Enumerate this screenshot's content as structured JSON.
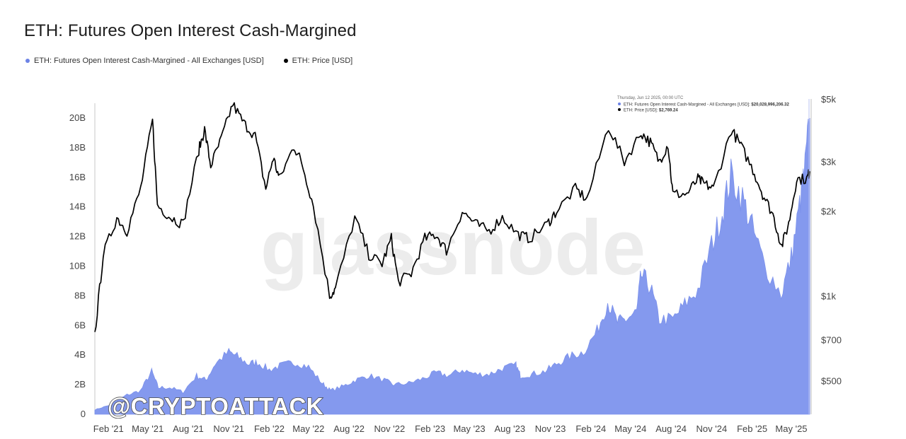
{
  "page_title": "ETH: Futures Open Interest Cash-Margined",
  "legend": [
    {
      "label": "ETH: Futures Open Interest Cash-Margined - All Exchanges [USD]",
      "color": "#6c83e6"
    },
    {
      "label": "ETH: Price [USD]",
      "color": "#000000"
    }
  ],
  "watermark": "glassnode",
  "handle": "@CRYPTOATTACK",
  "tooltip": {
    "date": "Thursday, Jun 12 2025, 00:00 UTC",
    "oi_label": "ETH: Futures Open Interest Cash-Margined - All Exchanges [USD]:",
    "oi_value": "$20,028,996,206.32",
    "price_label": "ETH: Price [USD]:",
    "price_value": "$2,769.24"
  },
  "colors": {
    "area": "#8499ee",
    "price": "#000000",
    "axis": "#444444"
  },
  "chart_data": {
    "type": "area",
    "title": "ETH: Futures Open Interest Cash-Margined",
    "x_ticks": [
      "Feb '21",
      "May '21",
      "Aug '21",
      "Nov '21",
      "Feb '22",
      "May '22",
      "Aug '22",
      "Nov '22",
      "Feb '23",
      "May '23",
      "Aug '23",
      "Nov '23",
      "Feb '24",
      "May '24",
      "Aug '24",
      "Nov '24",
      "Feb '25",
      "May '25"
    ],
    "y_left_ticks": [
      "0",
      "2B",
      "4B",
      "6B",
      "8B",
      "10B",
      "12B",
      "14B",
      "16B",
      "18B",
      "20B"
    ],
    "y_left_range": [
      0,
      21
    ],
    "y_right_ticks": [
      "$500",
      "$700",
      "$1k",
      "$2k",
      "$3k",
      "$5k"
    ],
    "y_right_scale": "log",
    "y_right_range": [
      380,
      5000
    ],
    "grid": false,
    "legend_position": "top-left",
    "series": [
      {
        "name": "ETH: Futures Open Interest Cash-Margined - All Exchanges [USD]",
        "axis": "left",
        "unit": "billion USD",
        "x": [
          "2021-01-01",
          "2021-02-01",
          "2021-03-15",
          "2021-04-15",
          "2021-05-10",
          "2021-05-25",
          "2021-06-20",
          "2021-07-20",
          "2021-08-20",
          "2021-09-10",
          "2021-10-01",
          "2021-11-01",
          "2021-11-20",
          "2021-12-15",
          "2022-01-05",
          "2022-02-01",
          "2022-03-01",
          "2022-04-01",
          "2022-05-01",
          "2022-06-01",
          "2022-06-20",
          "2022-07-20",
          "2022-08-15",
          "2022-09-15",
          "2022-10-20",
          "2022-11-10",
          "2022-12-15",
          "2023-01-15",
          "2023-02-15",
          "2023-03-15",
          "2023-04-15",
          "2023-05-15",
          "2023-06-15",
          "2023-07-15",
          "2023-08-15",
          "2023-08-25",
          "2023-09-20",
          "2023-10-20",
          "2023-11-15",
          "2023-12-15",
          "2024-01-15",
          "2024-02-15",
          "2024-03-10",
          "2024-04-01",
          "2024-04-20",
          "2024-05-15",
          "2024-05-25",
          "2024-06-15",
          "2024-07-05",
          "2024-08-05",
          "2024-09-01",
          "2024-10-01",
          "2024-11-01",
          "2024-11-25",
          "2024-12-15",
          "2025-01-10",
          "2025-02-01",
          "2025-03-01",
          "2025-04-08",
          "2025-05-01",
          "2025-05-20",
          "2025-06-01",
          "2025-06-12"
        ],
        "values": [
          0.3,
          0.6,
          1.3,
          1.6,
          2.9,
          1.8,
          1.8,
          1.5,
          2.6,
          2.3,
          3.4,
          4.2,
          3.9,
          3.4,
          3.5,
          3.0,
          3.3,
          3.5,
          3.2,
          2.1,
          1.6,
          1.9,
          2.3,
          2.6,
          2.3,
          2.0,
          2.1,
          2.4,
          2.8,
          2.6,
          3.0,
          2.7,
          2.7,
          3.1,
          3.3,
          2.6,
          2.7,
          2.9,
          3.4,
          3.9,
          4.2,
          5.6,
          7.6,
          6.2,
          6.4,
          6.9,
          9.4,
          8.6,
          6.4,
          6.4,
          7.4,
          8.4,
          11.4,
          13.6,
          16.1,
          14.6,
          12.6,
          10.1,
          8.1,
          10.6,
          14.1,
          16.6,
          20.0
        ]
      },
      {
        "name": "ETH: Price [USD]",
        "axis": "right",
        "unit": "USD",
        "x": [
          "2021-01-01",
          "2021-01-20",
          "2021-02-20",
          "2021-03-15",
          "2021-04-15",
          "2021-05-12",
          "2021-05-23",
          "2021-06-22",
          "2021-07-20",
          "2021-08-25",
          "2021-09-07",
          "2021-09-21",
          "2021-10-15",
          "2021-11-10",
          "2021-12-05",
          "2021-12-31",
          "2022-01-24",
          "2022-02-10",
          "2022-02-24",
          "2022-03-29",
          "2022-04-15",
          "2022-05-12",
          "2022-06-18",
          "2022-07-01",
          "2022-08-14",
          "2022-09-15",
          "2022-10-15",
          "2022-11-05",
          "2022-11-21",
          "2022-12-20",
          "2023-01-20",
          "2023-02-15",
          "2023-03-10",
          "2023-04-15",
          "2023-05-15",
          "2023-06-15",
          "2023-07-15",
          "2023-08-20",
          "2023-09-15",
          "2023-10-25",
          "2023-11-15",
          "2023-12-28",
          "2024-01-23",
          "2024-03-12",
          "2024-04-17",
          "2024-05-25",
          "2024-06-15",
          "2024-07-05",
          "2024-07-25",
          "2024-08-05",
          "2024-09-06",
          "2024-10-01",
          "2024-10-15",
          "2024-11-05",
          "2024-12-16",
          "2025-01-07",
          "2025-02-03",
          "2025-02-25",
          "2025-03-20",
          "2025-04-09",
          "2025-04-25",
          "2025-05-13",
          "2025-06-05",
          "2025-06-12"
        ],
        "values": [
          730,
          1400,
          1900,
          1700,
          2400,
          4200,
          2100,
          1900,
          1800,
          3300,
          3900,
          2900,
          3600,
          4800,
          4100,
          3700,
          2400,
          3100,
          2600,
          3400,
          3000,
          2100,
          1000,
          1060,
          1900,
          1400,
          1300,
          1600,
          1120,
          1200,
          1600,
          1650,
          1450,
          2000,
          1800,
          1700,
          1900,
          1650,
          1600,
          1800,
          2000,
          2400,
          2200,
          4000,
          3000,
          3800,
          3500,
          3000,
          3450,
          2300,
          2300,
          2600,
          2500,
          2400,
          3900,
          3400,
          2800,
          2300,
          1950,
          1500,
          1800,
          2600,
          2600,
          2769
        ]
      }
    ]
  }
}
